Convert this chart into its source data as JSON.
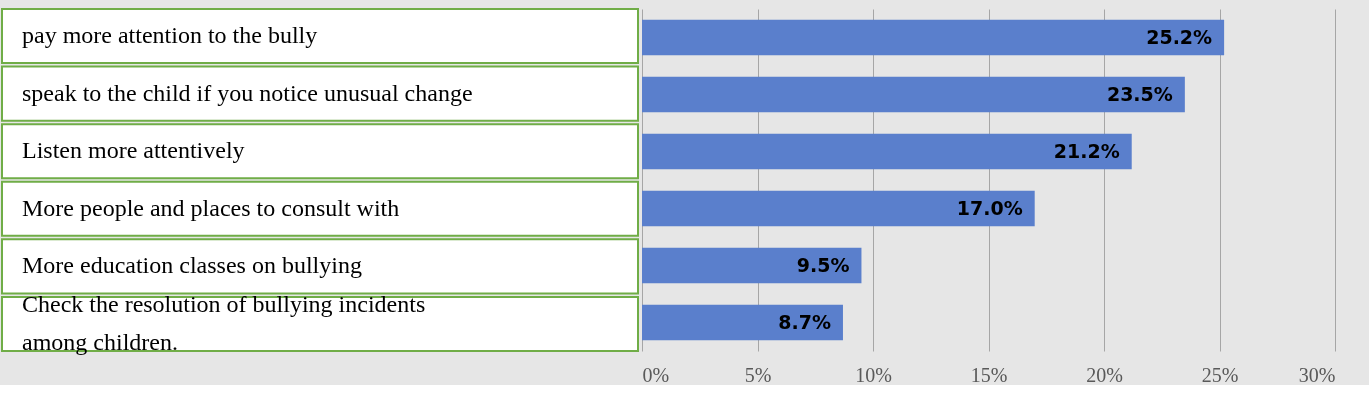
{
  "chart_data": {
    "type": "bar",
    "orientation": "horizontal",
    "categories": [
      "pay more attention to the bully",
      "speak to the child if you notice unusual change",
      "Listen more attentively",
      "More people and places to consult with",
      "More education classes on bullying",
      "Check the resolution of bullying incidents\namong children."
    ],
    "values": [
      25.2,
      23.5,
      21.2,
      17.0,
      9.5,
      8.7
    ],
    "value_labels": [
      "25.2%",
      "23.5%",
      "21.2%",
      "17.0%",
      "9.5%",
      "8.7%"
    ],
    "color": "#5a7fcc",
    "xlim": [
      0,
      30
    ],
    "xticks": [
      {
        "value": 0,
        "label": "0%"
      },
      {
        "value": 5,
        "label": "5%"
      },
      {
        "value": 10,
        "label": "10%"
      },
      {
        "value": 15,
        "label": "15%"
      },
      {
        "value": 20,
        "label": "20%"
      },
      {
        "value": 25,
        "label": "25%"
      },
      {
        "value": 30,
        "label": "30%"
      }
    ],
    "grid": "x"
  }
}
